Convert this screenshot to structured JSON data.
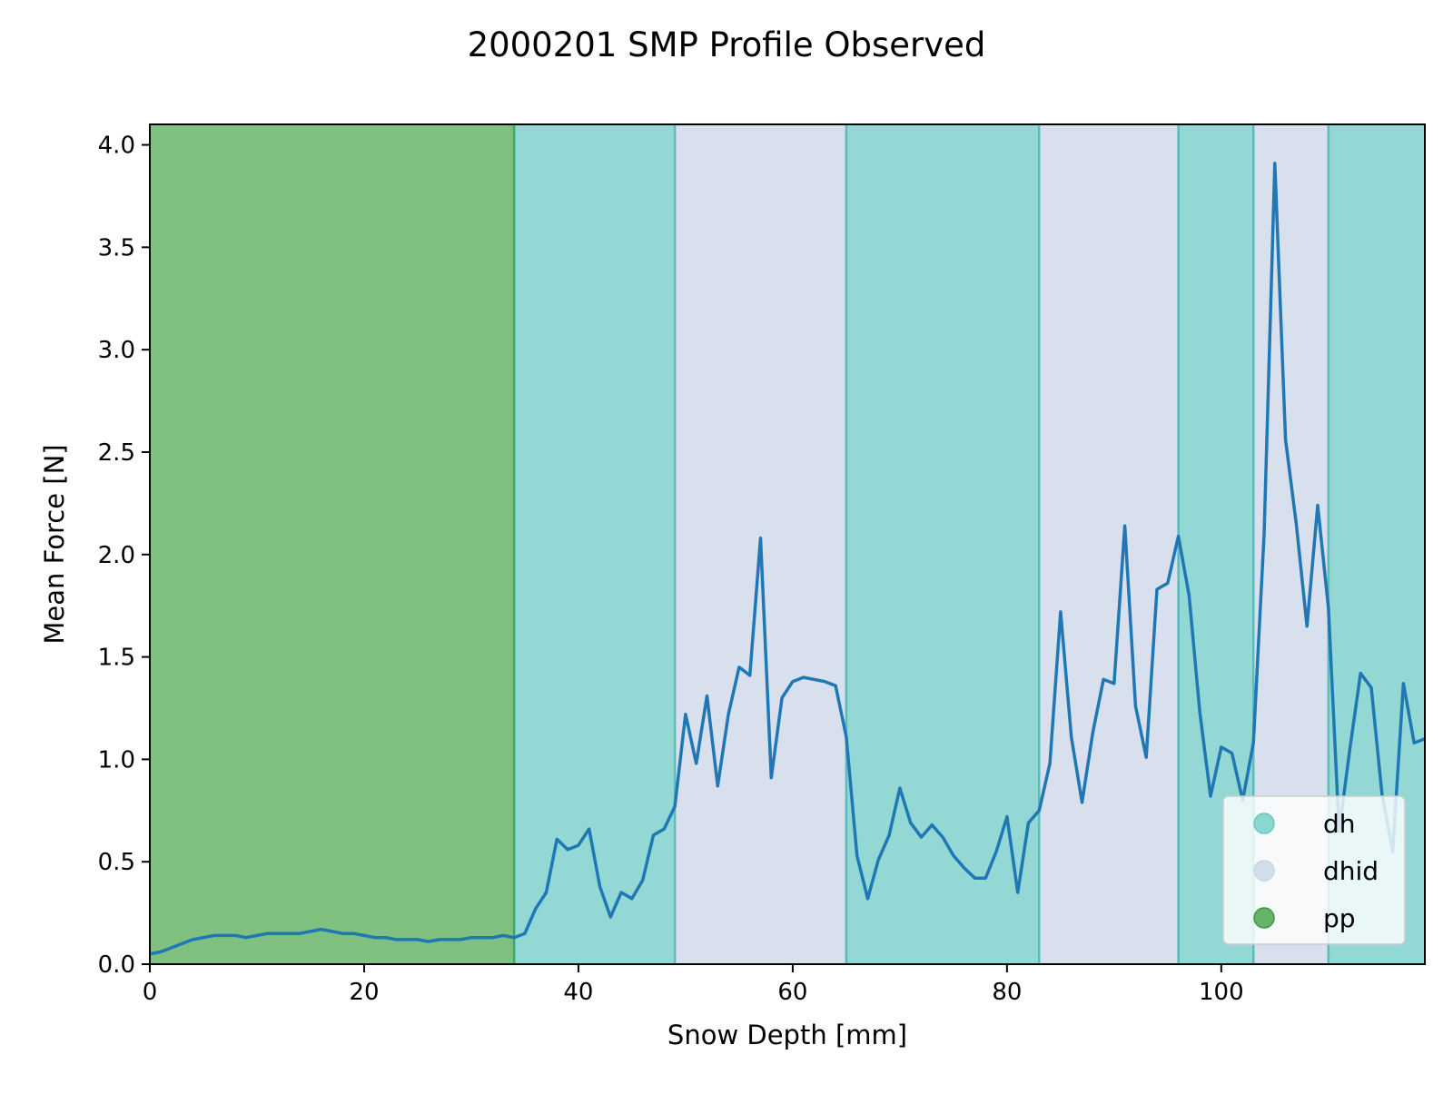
{
  "chart_data": {
    "type": "line",
    "title": "2000201 SMP Profile Observed",
    "xlabel": "Snow Depth [mm]",
    "ylabel": "Mean Force [N]",
    "xlim": [
      0,
      119
    ],
    "ylim": [
      0,
      4.1
    ],
    "xticks": [
      0,
      20,
      40,
      60,
      80,
      100
    ],
    "yticks": [
      0.0,
      0.5,
      1.0,
      1.5,
      2.0,
      2.5,
      3.0,
      3.5,
      4.0
    ],
    "xtick_labels": [
      "0",
      "20",
      "40",
      "60",
      "80",
      "100"
    ],
    "ytick_labels": [
      "0.0",
      "0.5",
      "1.0",
      "1.5",
      "2.0",
      "2.5",
      "3.0",
      "3.5",
      "4.0"
    ],
    "line_color": "#1f77b4",
    "legend_position": "lower right",
    "legend": [
      {
        "label": "dh",
        "color": "#66c9c2"
      },
      {
        "label": "dhid",
        "color": "#c7d3e6"
      },
      {
        "label": "pp",
        "color": "#3a9a3a"
      }
    ],
    "layers": [
      {
        "label": "pp",
        "start": 0,
        "end": 34,
        "color": "#80c080"
      },
      {
        "label": "dh",
        "start": 34,
        "end": 49,
        "color": "#93d8d4"
      },
      {
        "label": "dhid",
        "start": 49,
        "end": 65,
        "color": "#d7e0ec"
      },
      {
        "label": "dh",
        "start": 65,
        "end": 83,
        "color": "#93d8d4"
      },
      {
        "label": "dhid",
        "start": 83,
        "end": 96,
        "color": "#d7e0ec"
      },
      {
        "label": "dh",
        "start": 96,
        "end": 103,
        "color": "#93d8d4"
      },
      {
        "label": "dhid",
        "start": 103,
        "end": 110,
        "color": "#d7e0ec"
      },
      {
        "label": "dh",
        "start": 110,
        "end": 119,
        "color": "#93d8d4"
      }
    ],
    "boundary_colors": {
      "pp": "#3aaa6a",
      "default": "#5bbcbc"
    },
    "series": [
      {
        "x": [
          0,
          1,
          2,
          3,
          4,
          5,
          6,
          7,
          8,
          9,
          10,
          11,
          12,
          13,
          14,
          15,
          16,
          17,
          18,
          19,
          20,
          21,
          22,
          23,
          24,
          25,
          26,
          27,
          28,
          29,
          30,
          31,
          32,
          33,
          34,
          35,
          36,
          37,
          38,
          39,
          40,
          41,
          42,
          43,
          44,
          45,
          46,
          47,
          48,
          49,
          50,
          51,
          52,
          53,
          54,
          55,
          56,
          57,
          58,
          59,
          60,
          61,
          62,
          63,
          64,
          65,
          66,
          67,
          68,
          69,
          70,
          71,
          72,
          73,
          74,
          75,
          76,
          77,
          78,
          79,
          80,
          81,
          82,
          83,
          84,
          85,
          86,
          87,
          88,
          89,
          90,
          91,
          92,
          93,
          94,
          95,
          96,
          97,
          98,
          99,
          100,
          101,
          102,
          103,
          104,
          105,
          106,
          107,
          108,
          109,
          110,
          111,
          112,
          113,
          114,
          115,
          116,
          117,
          118,
          119
        ],
        "y": [
          0.05,
          0.06,
          0.08,
          0.1,
          0.12,
          0.13,
          0.14,
          0.14,
          0.14,
          0.13,
          0.14,
          0.15,
          0.15,
          0.15,
          0.15,
          0.16,
          0.17,
          0.16,
          0.15,
          0.15,
          0.14,
          0.13,
          0.13,
          0.12,
          0.12,
          0.12,
          0.11,
          0.12,
          0.12,
          0.12,
          0.13,
          0.13,
          0.13,
          0.14,
          0.13,
          0.15,
          0.27,
          0.35,
          0.61,
          0.56,
          0.58,
          0.66,
          0.38,
          0.23,
          0.35,
          0.32,
          0.41,
          0.63,
          0.66,
          0.77,
          1.22,
          0.98,
          1.31,
          0.87,
          1.22,
          1.45,
          1.41,
          2.08,
          0.91,
          1.3,
          1.38,
          1.4,
          1.39,
          1.38,
          1.36,
          1.11,
          0.53,
          0.32,
          0.51,
          0.63,
          0.86,
          0.69,
          0.62,
          0.68,
          0.62,
          0.53,
          0.47,
          0.42,
          0.42,
          0.55,
          0.72,
          0.35,
          0.69,
          0.75,
          0.98,
          1.72,
          1.11,
          0.79,
          1.13,
          1.39,
          1.37,
          2.14,
          1.26,
          1.01,
          1.83,
          1.86,
          2.09,
          1.8,
          1.23,
          0.82,
          1.06,
          1.03,
          0.8,
          1.08,
          2.1,
          3.91,
          2.56,
          2.15,
          1.65,
          2.24,
          1.74,
          0.65,
          1.05,
          1.42,
          1.35,
          0.83,
          0.55,
          1.37,
          1.08,
          1.1
        ]
      }
    ]
  }
}
